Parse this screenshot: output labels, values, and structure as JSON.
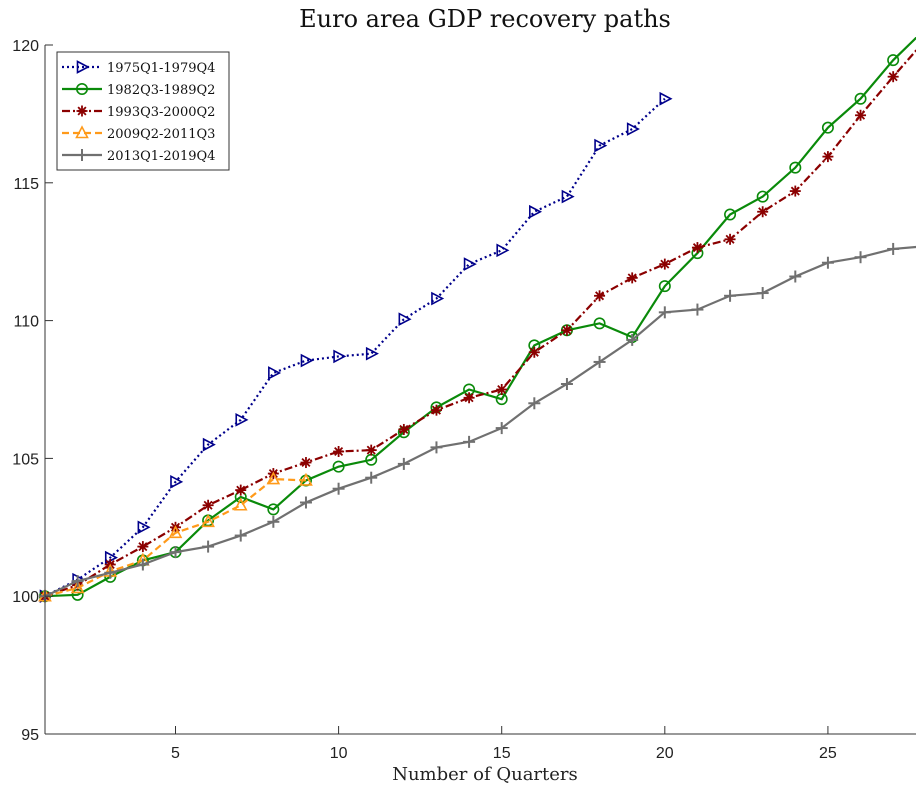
{
  "chart_data": {
    "type": "line",
    "title": "Euro area GDP recovery paths",
    "xlabel": "Number of Quarters",
    "ylabel": "",
    "xlim": [
      1,
      27.7
    ],
    "ylim": [
      95,
      120
    ],
    "xticks": [
      5,
      10,
      15,
      20,
      25
    ],
    "yticks": [
      95,
      100,
      105,
      110,
      115,
      120
    ],
    "grid": false,
    "legend_position": "top-left",
    "series": [
      {
        "name": "1975Q1-1979Q4",
        "color": "#00008b",
        "line_style": "dotted",
        "marker": "triangle-right",
        "x": [
          1,
          2,
          3,
          4,
          5,
          6,
          7,
          8,
          9,
          10,
          11,
          12,
          13,
          14,
          15,
          16,
          17,
          18,
          19,
          20
        ],
        "values": [
          100.0,
          100.6,
          101.4,
          102.5,
          104.15,
          105.5,
          106.4,
          108.1,
          108.55,
          108.7,
          108.8,
          110.05,
          110.8,
          112.05,
          112.55,
          113.95,
          114.5,
          116.35,
          116.95,
          118.05
        ]
      },
      {
        "name": "1982Q3-1989Q2",
        "color": "#0a8a0a",
        "line_style": "solid",
        "marker": "circle",
        "x": [
          1,
          2,
          3,
          4,
          5,
          6,
          7,
          8,
          9,
          10,
          11,
          12,
          13,
          14,
          15,
          16,
          17,
          18,
          19,
          20,
          21,
          22,
          23,
          24,
          25,
          26,
          27,
          28
        ],
        "values": [
          100.0,
          100.05,
          100.7,
          101.3,
          101.6,
          102.75,
          103.6,
          103.15,
          104.2,
          104.7,
          104.95,
          105.95,
          106.85,
          107.5,
          107.15,
          109.1,
          109.65,
          109.9,
          109.4,
          111.25,
          112.45,
          113.85,
          114.5,
          115.55,
          117.0,
          118.05,
          119.45,
          120.6
        ]
      },
      {
        "name": "1993Q3-2000Q2",
        "color": "#8b0000",
        "line_style": "dash-dot",
        "marker": "asterisk",
        "x": [
          1,
          2,
          3,
          4,
          5,
          6,
          7,
          8,
          9,
          10,
          11,
          12,
          13,
          14,
          15,
          16,
          17,
          18,
          19,
          20,
          21,
          22,
          23,
          24,
          25,
          26,
          27,
          28
        ],
        "values": [
          100.0,
          100.4,
          101.15,
          101.8,
          102.5,
          103.3,
          103.85,
          104.45,
          104.85,
          105.25,
          105.3,
          106.05,
          106.75,
          107.2,
          107.5,
          108.85,
          109.65,
          110.9,
          111.55,
          112.05,
          112.65,
          112.95,
          113.95,
          114.7,
          115.95,
          117.45,
          118.85,
          120.2
        ]
      },
      {
        "name": "2009Q2-2011Q3",
        "color": "#ff9a1a",
        "line_style": "dashed",
        "marker": "triangle-up",
        "x": [
          1,
          2,
          3,
          4,
          5,
          6,
          7,
          8,
          9
        ],
        "values": [
          100.0,
          100.3,
          100.9,
          101.3,
          102.3,
          102.7,
          103.3,
          104.25,
          104.2
        ]
      },
      {
        "name": "2013Q1-2019Q4",
        "color": "#707070",
        "line_style": "solid",
        "marker": "plus",
        "x": [
          1,
          2,
          3,
          4,
          5,
          6,
          7,
          8,
          9,
          10,
          11,
          12,
          13,
          14,
          15,
          16,
          17,
          18,
          19,
          20,
          21,
          22,
          23,
          24,
          25,
          26,
          27,
          28
        ],
        "values": [
          100.0,
          100.55,
          100.85,
          101.15,
          101.6,
          101.8,
          102.2,
          102.7,
          103.4,
          103.9,
          104.3,
          104.8,
          105.4,
          105.6,
          106.1,
          107.0,
          107.7,
          108.5,
          109.3,
          110.3,
          110.4,
          110.9,
          111.0,
          111.6,
          112.1,
          112.3,
          112.6,
          112.7
        ]
      }
    ]
  }
}
